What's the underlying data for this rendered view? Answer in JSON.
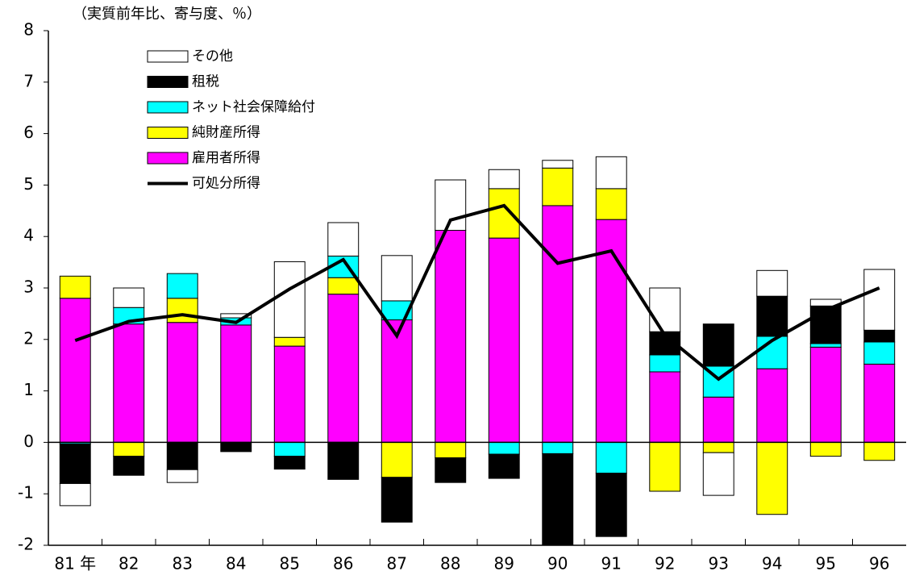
{
  "chart_data": {
    "type": "bar",
    "unit_label": "（実質前年比、寄与度、％）",
    "categories": [
      "81 年",
      "82",
      "83",
      "84",
      "85",
      "86",
      "87",
      "88",
      "89",
      "90",
      "91",
      "92",
      "93",
      "94",
      "95",
      "96"
    ],
    "series": [
      {
        "name": "雇用者所得",
        "color": "#ff00ff",
        "values": [
          2.8,
          2.3,
          2.33,
          2.28,
          1.87,
          2.88,
          2.38,
          4.12,
          3.97,
          4.6,
          4.33,
          1.37,
          0.88,
          1.43,
          1.85,
          1.52
        ]
      },
      {
        "name": "純財産所得",
        "color": "#ffff00",
        "values": [
          0.43,
          -0.27,
          0.47,
          0,
          0.17,
          0.32,
          -0.68,
          -0.3,
          0.96,
          0.73,
          0.6,
          -0.95,
          -0.2,
          -1.4,
          -0.27,
          -0.35
        ]
      },
      {
        "name": "ネット社会保障給付",
        "color": "#00ffff",
        "values": [
          -0.03,
          0.32,
          0.48,
          0.14,
          -0.27,
          0.42,
          0.37,
          0,
          -0.23,
          -0.22,
          -0.6,
          0.33,
          0.6,
          0.63,
          0.07,
          0.43
        ]
      },
      {
        "name": "租税",
        "color": "#000000",
        "values": [
          -0.77,
          -0.37,
          -0.53,
          -0.18,
          -0.25,
          -0.72,
          -0.87,
          -0.48,
          -0.47,
          -1.78,
          -1.23,
          0.45,
          0.82,
          0.78,
          0.73,
          0.23
        ]
      },
      {
        "name": "その他",
        "color": "#ffffff",
        "values": [
          -0.43,
          0.38,
          -0.25,
          0.08,
          1.47,
          0.65,
          0.88,
          0.98,
          0.37,
          0.15,
          0.62,
          0.85,
          -0.83,
          0.5,
          0.13,
          1.18
        ]
      },
      {
        "name": "可処分所得",
        "color": "#000000",
        "type": "line",
        "values": [
          1.98,
          2.35,
          2.48,
          2.33,
          2.98,
          3.55,
          2.07,
          4.32,
          4.6,
          3.48,
          3.72,
          2.08,
          1.23,
          1.98,
          2.57,
          3.0
        ]
      }
    ],
    "ylim": [
      -2,
      8
    ],
    "yticks": [
      -2,
      -1,
      0,
      1,
      2,
      3,
      4,
      5,
      6,
      7,
      8
    ]
  }
}
